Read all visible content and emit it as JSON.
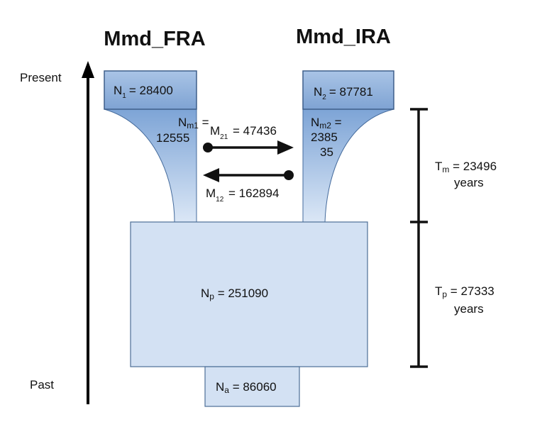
{
  "titles": {
    "left": "Mmd_FRA",
    "right": "Mmd_IRA"
  },
  "time_axis": {
    "top": "Present",
    "bottom": "Past"
  },
  "populations": {
    "n1": {
      "symbol": "N",
      "sub": "1",
      "value": "= 28400"
    },
    "n2": {
      "symbol": "N",
      "sub": "2",
      "value": "= 87781"
    },
    "nm1": {
      "symbol": "N",
      "sub": "m1",
      "eq": " =",
      "value": "12555"
    },
    "nm2": {
      "symbol": "N",
      "sub": "m2",
      "eq": " =",
      "value_line1": "2385",
      "value_line2": "35"
    },
    "np": {
      "symbol": "N",
      "sub": "p",
      "value": " = 251090"
    },
    "na": {
      "symbol": "N",
      "sub": "a",
      "value": " = 86060"
    }
  },
  "migration": {
    "m21": {
      "symbol": "M",
      "sub": "21",
      "value": " = 47436"
    },
    "m12": {
      "symbol": "M",
      "sub": "12",
      "value": " = 162894"
    }
  },
  "times": {
    "tm": {
      "symbol": "T",
      "sub": "m",
      "value": " = 23496",
      "unit": "years"
    },
    "tp": {
      "symbol": "T",
      "sub": "p",
      "value": " = 27333",
      "unit": "years"
    }
  },
  "colors": {
    "box_dark": "#8fb1dc",
    "box_light": "#d3e1f3",
    "border": "#3f5f8a",
    "bar_stroke": "#111111"
  }
}
